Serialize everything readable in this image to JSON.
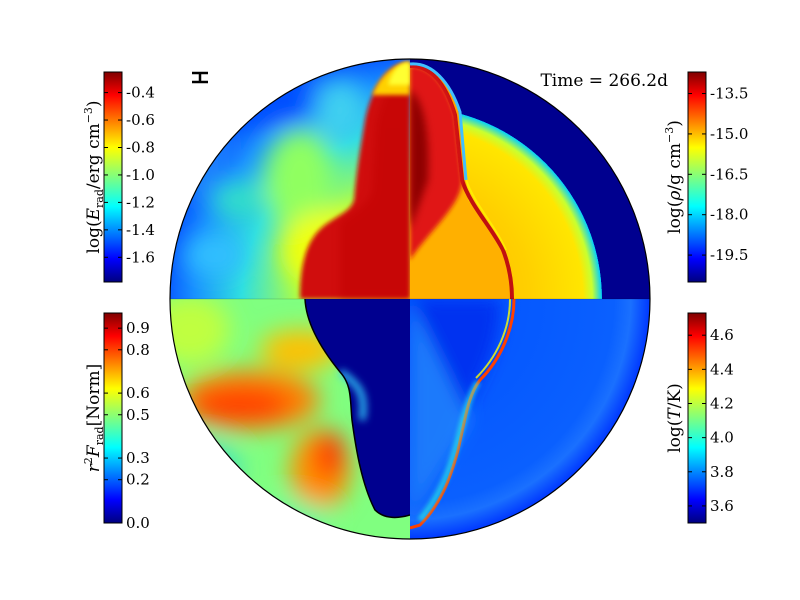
{
  "time_label": "Time = 266.2d",
  "colormap": [
    "#00007f",
    "#0000ff",
    "#007fff",
    "#00ffff",
    "#7fff7f",
    "#ffff00",
    "#ff7f00",
    "#ff0000",
    "#7f0000"
  ],
  "chart_data": {
    "type": "heatmap",
    "description": "Quadrant maps of a polar simulation snapshot",
    "panels": [
      {
        "position": "top-left",
        "quantity": "radiation energy density",
        "label": "log(E_rad/erg cm^-3)",
        "label_main": "log(",
        "label_E": "E",
        "label_E_sub": "rad",
        "label_unit": "/erg cm",
        "label_exp": "−3",
        "label_close": ")",
        "range": [
          -1.78,
          -0.25
        ],
        "ticks": [
          "-0.4",
          "-0.6",
          "-0.8",
          "-1.0",
          "-1.2",
          "-1.4",
          "-1.6"
        ],
        "tick_values": [
          -0.4,
          -0.6,
          -0.8,
          -1.0,
          -1.2,
          -1.4,
          -1.6
        ]
      },
      {
        "position": "top-right",
        "quantity": "density",
        "label_main": "log(",
        "label_rho": "ρ",
        "label_unit": "/g cm",
        "label_exp": "−3",
        "label_close": ")",
        "range": [
          -20.5,
          -12.7
        ],
        "ticks": [
          "-13.5",
          "-15.0",
          "-16.5",
          "-18.0",
          "-19.5"
        ],
        "tick_values": [
          -13.5,
          -15.0,
          -16.5,
          -18.0,
          -19.5
        ]
      },
      {
        "position": "bottom-left",
        "quantity": "normalized radiative flux",
        "label_r": "r",
        "label_r_exp": "2",
        "label_F": "F",
        "label_F_sub": "rad",
        "label_norm": "[Norm]",
        "range": [
          0.0,
          0.97
        ],
        "ticks": [
          "0.9",
          "0.8",
          "0.6",
          "0.5",
          "0.3",
          "0.2",
          "0.0"
        ],
        "tick_values": [
          0.9,
          0.8,
          0.6,
          0.5,
          0.3,
          0.2,
          0.0
        ]
      },
      {
        "position": "bottom-right",
        "quantity": "temperature",
        "label_main": "log(",
        "label_T": "T",
        "label_unit": "/K)",
        "range": [
          3.5,
          4.73
        ],
        "ticks": [
          "4.6",
          "4.4",
          "4.2",
          "4.0",
          "3.8",
          "3.6"
        ],
        "tick_values": [
          4.6,
          4.4,
          4.2,
          4.0,
          3.8,
          3.6
        ]
      }
    ]
  }
}
